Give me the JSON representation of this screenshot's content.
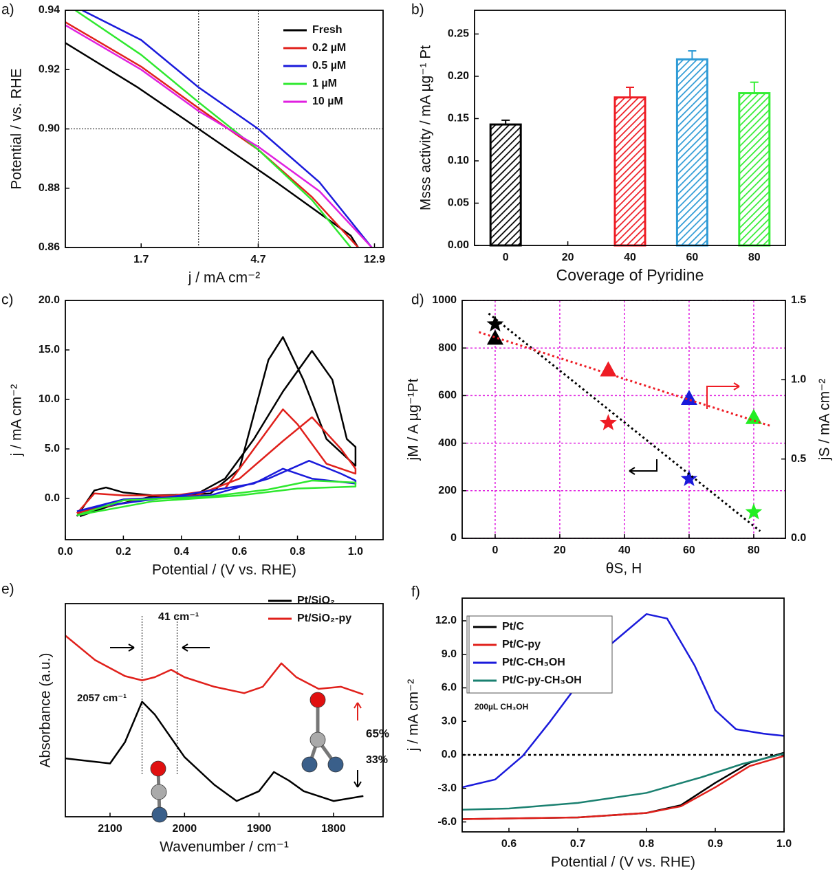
{
  "chart_data": [
    {
      "type": "line",
      "panel": "a)",
      "xlabel": "j / mA cm⁻²",
      "ylabel": "Potential / vs. RHE",
      "xscale": "log",
      "xlim": [
        0.88,
        13.9
      ],
      "xticks": [
        1.7,
        4.7,
        12.9
      ],
      "ylim": [
        0.86,
        0.94
      ],
      "yticks": [
        0.86,
        0.88,
        {
          "value": 0.9,
          "label": "0.90"
        },
        0.92,
        0.94
      ],
      "hlines": [
        0.9
      ],
      "vlines": [
        2.8,
        4.7
      ],
      "series": [
        {
          "name": "Fresh",
          "color": "#000000",
          "x": [
            0.88,
            1.65,
            2.8,
            5.5,
            10.5,
            11.2
          ],
          "values": [
            0.929,
            0.914,
            0.9,
            0.882,
            0.864,
            0.86
          ]
        },
        {
          "name": "0.2 µM",
          "color": "#e0201b",
          "x": [
            0.88,
            1.7,
            2.8,
            4.7,
            7.5,
            11.2
          ],
          "values": [
            0.936,
            0.921,
            0.907,
            0.893,
            0.877,
            0.86
          ]
        },
        {
          "name": "0.5 µM",
          "color": "#1a1adb",
          "x": [
            1.02,
            1.7,
            2.8,
            4.7,
            8,
            12.6
          ],
          "values": [
            0.94,
            0.93,
            0.914,
            0.9,
            0.882,
            0.86
          ]
        },
        {
          "name": "1 µM",
          "color": "#2ee82e",
          "x": [
            0.96,
            1.7,
            2.8,
            4.7,
            7.5,
            10.5
          ],
          "values": [
            0.94,
            0.925,
            0.909,
            0.893,
            0.876,
            0.86
          ]
        },
        {
          "name": "10 µM",
          "color": "#e020e0",
          "x": [
            0.88,
            1.7,
            2.8,
            4.7,
            8,
            12.6
          ],
          "values": [
            0.935,
            0.92,
            0.906,
            0.894,
            0.879,
            0.86
          ]
        }
      ]
    },
    {
      "type": "bar",
      "panel": "b)",
      "xlabel": "Coverage of Pyridine",
      "ylabel": "Msss activity / mA µg⁻¹ Pt",
      "categories": [
        "0",
        "20",
        "40",
        "60",
        "80"
      ],
      "values": [
        0.143,
        null,
        0.175,
        0.22,
        0.18
      ],
      "errors": [
        0.005,
        null,
        0.012,
        0.01,
        0.013
      ],
      "colors": [
        "#000000",
        null,
        "#ee1c24",
        "#2f9bd6",
        "#33ee33"
      ],
      "ylim": [
        0,
        0.278
      ],
      "yticks": [
        {
          "value": 0,
          "label": "0.00"
        },
        0.05,
        {
          "value": 0.1,
          "label": "0.10"
        },
        0.15,
        {
          "value": 0.2,
          "label": "0.20"
        },
        0.25
      ]
    },
    {
      "type": "line",
      "panel": "c)",
      "xlabel": "Potential / (V vs. RHE)",
      "ylabel": "j / mA cm⁻²",
      "xlim": [
        0,
        1.095
      ],
      "xticks": [
        {
          "value": 0,
          "label": "0.0"
        },
        0.2,
        0.4,
        0.6,
        0.8,
        {
          "value": 1,
          "label": "1.0"
        }
      ],
      "ylim": [
        -4.17,
        20
      ],
      "yticks": [
        {
          "value": 0,
          "label": "0.0"
        },
        {
          "value": 5,
          "label": "5.0"
        },
        {
          "value": 10,
          "label": "10.0"
        },
        {
          "value": 15,
          "label": "15.0"
        },
        {
          "value": 20,
          "label": "20.0"
        }
      ],
      "series": [
        {
          "name": "Fresh",
          "color": "#000000",
          "x": [
            0.04,
            0.1,
            0.14,
            0.2,
            0.3,
            0.45,
            0.55,
            0.65,
            0.75,
            0.85,
            0.92,
            0.97,
            1.0,
            1.0,
            0.9,
            0.82,
            0.75,
            0.7,
            0.6,
            0.5,
            0.3,
            0.15,
            0.05
          ],
          "values": [
            -1.8,
            0.8,
            1.1,
            0.6,
            0.3,
            0.4,
            2,
            6,
            10.8,
            14.9,
            12,
            6,
            5.2,
            3.3,
            6,
            12,
            16.3,
            14,
            3,
            0.5,
            0.2,
            -0.8,
            -1.8
          ]
        },
        {
          "name": "0.2 µM",
          "color": "#e0201b",
          "x": [
            0.04,
            0.1,
            0.2,
            0.45,
            0.6,
            0.75,
            0.85,
            0.95,
            1.0,
            1.0,
            0.9,
            0.8,
            0.75,
            0.65,
            0.55,
            0.3,
            0.1,
            0.04
          ],
          "values": [
            -1.5,
            0.5,
            0.3,
            0.3,
            2,
            5.8,
            8.2,
            5,
            3,
            2.5,
            3.5,
            7.5,
            9,
            5,
            1,
            0,
            -1,
            -1.5
          ]
        },
        {
          "name": "0.5 µM",
          "color": "#1a1adb",
          "x": [
            0.04,
            0.2,
            0.5,
            0.7,
            0.84,
            0.95,
            1.0,
            1.0,
            0.85,
            0.75,
            0.65,
            0.4,
            0.1,
            0.04
          ],
          "values": [
            -1.3,
            -0.1,
            0.3,
            2,
            3.8,
            2.5,
            1.8,
            1.5,
            2,
            3,
            1.5,
            0.3,
            -0.9,
            -1.3
          ]
        },
        {
          "name": "1 µM",
          "color": "#2ee82e",
          "x": [
            0.04,
            0.2,
            0.5,
            0.7,
            0.85,
            1.0,
            1.0,
            0.8,
            0.6,
            0.3,
            0.04
          ],
          "values": [
            -1.7,
            -0.2,
            0.2,
            0.9,
            1.8,
            1.6,
            1.2,
            1.0,
            0.3,
            -0.3,
            -1.7
          ]
        }
      ]
    },
    {
      "type": "scatter",
      "panel": "d)",
      "xlabel": "θS, H",
      "ylabel": "jM / A µg⁻¹Pt",
      "y2label": "jS / mA cm⁻²",
      "xlim": [
        -10.2,
        89.8
      ],
      "xticks": [
        0,
        20,
        40,
        60,
        80
      ],
      "ylim": [
        0,
        1000
      ],
      "yticks": [
        0,
        200,
        400,
        600,
        800,
        1000
      ],
      "y2lim": [
        0,
        1.5
      ],
      "y2ticks": [
        {
          "value": 0,
          "label": "0.0"
        },
        0.5,
        {
          "value": 1,
          "label": "1.0"
        },
        1.5
      ],
      "grid": true,
      "grid_color": "#e020e0",
      "series": [
        {
          "marker": "star",
          "colors": [
            "#000000",
            "#ee1c24",
            "#1a1adb",
            "#22ee22"
          ],
          "x": [
            0,
            35,
            60,
            80
          ],
          "values": [
            900,
            485,
            250,
            110
          ]
        },
        {
          "marker": "triangle",
          "axis": "y2",
          "colors": [
            "#000000",
            "#ee1c24",
            "#1a1adb",
            "#22ee22"
          ],
          "x": [
            0,
            35,
            60,
            80
          ],
          "values": [
            1.26,
            1.06,
            0.88,
            0.76
          ]
        },
        {
          "style": "dotted",
          "color": "#000000",
          "x": [
            -2,
            82
          ],
          "values": [
            945,
            30
          ]
        },
        {
          "style": "dotted",
          "color": "#ee1c24",
          "axis": "y2",
          "x": [
            -5,
            85
          ],
          "values": [
            1.3,
            0.71
          ]
        }
      ]
    },
    {
      "type": "line",
      "panel": "e)",
      "xlabel": "Wavenumber / cm⁻¹",
      "ylabel": "Absorbance (a.u.)",
      "xlim": [
        2160,
        1733.5
      ],
      "xticks": [
        2100,
        2000,
        1900,
        1800
      ],
      "ylim": [
        0,
        1
      ],
      "vlines": [
        2057,
        2010
      ],
      "annotations": [
        "41 cm⁻¹",
        "2057 cm⁻¹",
        "65%",
        "33%"
      ],
      "series": [
        {
          "name": "Pt/SiO₂",
          "color": "#000000",
          "x": [
            2160,
            2100,
            2080,
            2057,
            2040,
            2000,
            1960,
            1930,
            1900,
            1880,
            1860,
            1840,
            1800,
            1760
          ],
          "values": [
            0.274,
            0.25,
            0.35,
            0.54,
            0.48,
            0.28,
            0.15,
            0.074,
            0.12,
            0.21,
            0.17,
            0.12,
            0.074,
            0.097
          ]
        },
        {
          "name": "Pt/SiO₂-py",
          "color": "#e0201b",
          "x": [
            2160,
            2120,
            2080,
            2057,
            2040,
            2018,
            2000,
            1960,
            1920,
            1895,
            1870,
            1850,
            1820,
            1790,
            1760
          ],
          "values": [
            0.85,
            0.735,
            0.66,
            0.64,
            0.655,
            0.69,
            0.655,
            0.61,
            0.58,
            0.61,
            0.72,
            0.655,
            0.6,
            0.61,
            0.574
          ]
        }
      ]
    },
    {
      "type": "line",
      "panel": "f)",
      "xlabel": "Potential / (V vs. RHE)",
      "ylabel": "j / mA cm⁻²",
      "xlim": [
        0.532,
        1.0
      ],
      "xticks": [
        0.6,
        0.7,
        0.8,
        0.9,
        {
          "value": 1,
          "label": "1.0"
        }
      ],
      "ylim": [
        -6.89,
        14.03
      ],
      "yticks": [
        {
          "value": -6,
          "label": "-6.0"
        },
        {
          "value": -3,
          "label": "-3.0"
        },
        {
          "value": 0,
          "label": "0.0"
        },
        {
          "value": 3,
          "label": "3.0"
        },
        {
          "value": 6,
          "label": "6.0"
        },
        {
          "value": 9,
          "label": "9.0"
        },
        {
          "value": 12,
          "label": "12.0"
        }
      ],
      "hlines": [
        0
      ],
      "annotations": [
        "200µL CH₃OH"
      ],
      "series": [
        {
          "name": "Pt/C",
          "color": "#000000",
          "x": [
            0.532,
            0.7,
            0.8,
            0.85,
            0.9,
            0.95,
            1.0
          ],
          "values": [
            -5.75,
            -5.6,
            -5.2,
            -4.5,
            -2.5,
            -0.7,
            0.2
          ]
        },
        {
          "name": "Pt/C-py",
          "color": "#e0201b",
          "x": [
            0.532,
            0.7,
            0.8,
            0.85,
            0.9,
            0.95,
            1.0
          ],
          "values": [
            -5.75,
            -5.6,
            -5.2,
            -4.6,
            -2.9,
            -1.0,
            -0.1
          ]
        },
        {
          "name": "Pt/C-CH₃OH",
          "color": "#1a1adb",
          "x": [
            0.532,
            0.58,
            0.62,
            0.66,
            0.7,
            0.75,
            0.8,
            0.83,
            0.87,
            0.9,
            0.93,
            0.97,
            1.0
          ],
          "values": [
            -2.9,
            -2.2,
            -0.1,
            3,
            6.3,
            10,
            12.6,
            12.2,
            8,
            4,
            2.3,
            1.9,
            1.7
          ]
        },
        {
          "name": "Pt/C-py-CH₃OH",
          "color": "#1a8070",
          "x": [
            0.532,
            0.6,
            0.7,
            0.8,
            0.88,
            0.94,
            1.0
          ],
          "values": [
            -4.9,
            -4.8,
            -4.3,
            -3.4,
            -2.0,
            -0.8,
            0.1
          ]
        }
      ]
    }
  ]
}
